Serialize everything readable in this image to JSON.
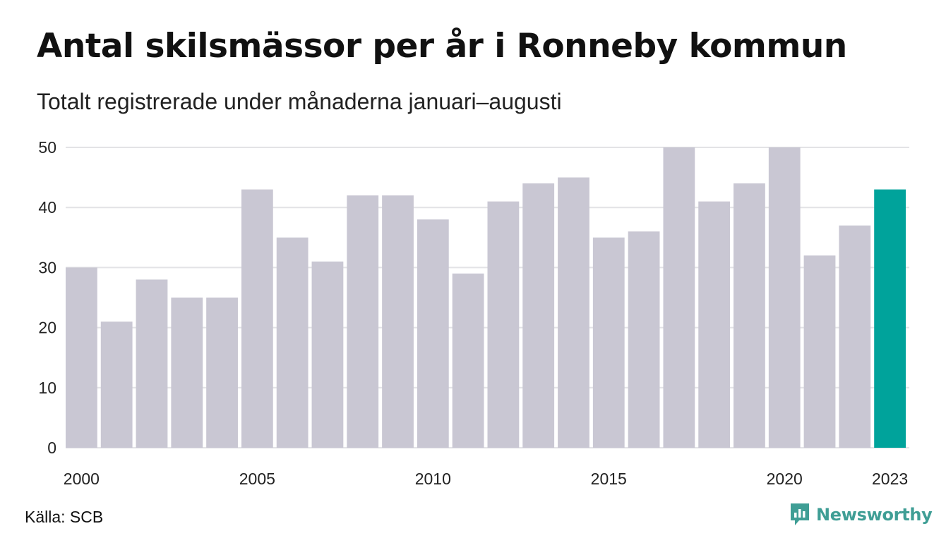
{
  "chart_data": {
    "type": "bar",
    "title": "Antal skilsmässor per år i Ronneby kommun",
    "subtitle": "Totalt registrerade under månaderna januari–augusti",
    "categories": [
      "2000",
      "2001",
      "2002",
      "2003",
      "2004",
      "2005",
      "2006",
      "2007",
      "2008",
      "2009",
      "2010",
      "2011",
      "2012",
      "2013",
      "2014",
      "2015",
      "2016",
      "2017",
      "2018",
      "2019",
      "2020",
      "2021",
      "2022",
      "2023"
    ],
    "values": [
      30,
      21,
      28,
      25,
      25,
      43,
      35,
      31,
      42,
      42,
      38,
      29,
      41,
      44,
      45,
      35,
      36,
      50,
      41,
      44,
      50,
      32,
      37,
      43
    ],
    "x_tick_labels": [
      "2000",
      "2005",
      "2010",
      "2015",
      "2020",
      "2023"
    ],
    "y_ticks": [
      0,
      10,
      20,
      30,
      40,
      50
    ],
    "ylim": [
      0,
      50
    ],
    "xlabel": "",
    "ylabel": "",
    "grid": true,
    "highlight_category": "2023",
    "colors": {
      "bar": "#c9c7d3",
      "highlight": "#00a39b",
      "grid": "#e3e3e6"
    }
  },
  "footer": {
    "source": "Källa: SCB",
    "brand_name": "Newsworthy",
    "brand_icon": "newsworthy-logo-icon",
    "brand_color": "#3f9e95"
  }
}
